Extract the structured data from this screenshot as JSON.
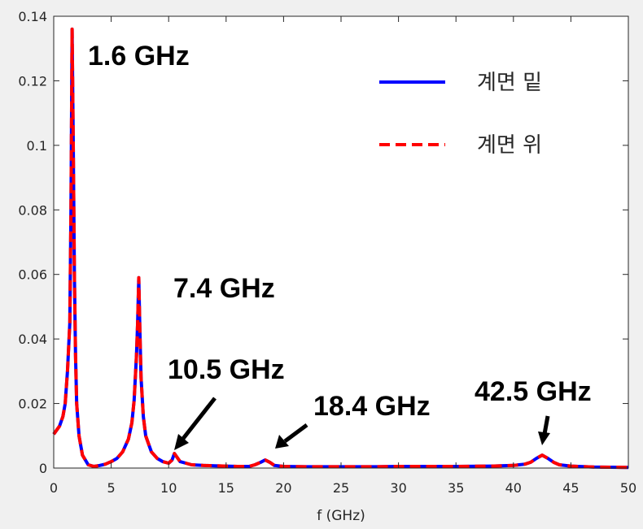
{
  "chart_data": {
    "type": "line",
    "title": "",
    "xlabel": "f (GHz)",
    "ylabel": "",
    "xlim": [
      0,
      50
    ],
    "ylim": [
      0,
      0.14
    ],
    "xticks": [
      "0",
      "5",
      "10",
      "15",
      "20",
      "25",
      "30",
      "35",
      "40",
      "45",
      "50"
    ],
    "yticks": [
      "0",
      "0.02",
      "0.04",
      "0.06",
      "0.08",
      "0.1",
      "0.12",
      "0.14"
    ],
    "grid": false,
    "legend_position": "top-right",
    "colors": {
      "blue": "#0000ff",
      "red": "#ff0000"
    },
    "series": [
      {
        "name": "계면 밑",
        "color": "#0000ff",
        "style": "solid",
        "x": [
          0,
          0.5,
          0.8,
          1.0,
          1.2,
          1.4,
          1.5,
          1.6,
          1.7,
          1.8,
          1.9,
          2.0,
          2.2,
          2.5,
          3.0,
          3.5,
          4.0,
          4.5,
          5.0,
          5.5,
          6.0,
          6.5,
          6.8,
          7.0,
          7.2,
          7.3,
          7.4,
          7.5,
          7.6,
          7.8,
          8.0,
          8.5,
          9.0,
          9.5,
          10.0,
          10.3,
          10.5,
          10.8,
          11.0,
          11.5,
          12.0,
          13.0,
          14.0,
          15.0,
          16.0,
          17.0,
          17.5,
          18.0,
          18.4,
          18.8,
          19.2,
          20.0,
          22.0,
          25.0,
          28.0,
          30.0,
          32.0,
          35.0,
          38.0,
          40.0,
          41.0,
          41.5,
          42.0,
          42.5,
          43.0,
          43.5,
          44.0,
          45.0,
          47.0,
          50.0
        ],
        "y": [
          0.0105,
          0.013,
          0.016,
          0.02,
          0.03,
          0.045,
          0.08,
          0.136,
          0.1,
          0.06,
          0.035,
          0.02,
          0.01,
          0.004,
          0.001,
          0.0005,
          0.0008,
          0.0012,
          0.002,
          0.003,
          0.005,
          0.009,
          0.014,
          0.021,
          0.035,
          0.045,
          0.059,
          0.042,
          0.028,
          0.016,
          0.01,
          0.005,
          0.003,
          0.002,
          0.0015,
          0.0025,
          0.0045,
          0.003,
          0.002,
          0.0015,
          0.001,
          0.0008,
          0.0007,
          0.0006,
          0.0005,
          0.0005,
          0.001,
          0.0018,
          0.0025,
          0.0018,
          0.0008,
          0.0005,
          0.0004,
          0.0004,
          0.0004,
          0.0005,
          0.0005,
          0.0005,
          0.0006,
          0.0008,
          0.0012,
          0.0018,
          0.003,
          0.004,
          0.003,
          0.0018,
          0.001,
          0.0006,
          0.0003,
          0.0002
        ]
      },
      {
        "name": "계면 위",
        "color": "#ff0000",
        "style": "dashed",
        "x": [
          0,
          0.5,
          0.8,
          1.0,
          1.2,
          1.4,
          1.5,
          1.6,
          1.7,
          1.8,
          1.9,
          2.0,
          2.2,
          2.5,
          3.0,
          3.5,
          4.0,
          4.5,
          5.0,
          5.5,
          6.0,
          6.5,
          6.8,
          7.0,
          7.2,
          7.3,
          7.4,
          7.5,
          7.6,
          7.8,
          8.0,
          8.5,
          9.0,
          9.5,
          10.0,
          10.3,
          10.5,
          10.8,
          11.0,
          11.5,
          12.0,
          13.0,
          14.0,
          15.0,
          16.0,
          17.0,
          17.5,
          18.0,
          18.4,
          18.8,
          19.2,
          20.0,
          22.0,
          25.0,
          28.0,
          30.0,
          32.0,
          35.0,
          38.0,
          40.0,
          41.0,
          41.5,
          42.0,
          42.5,
          43.0,
          43.5,
          44.0,
          45.0,
          47.0,
          50.0
        ],
        "y": [
          0.0105,
          0.013,
          0.016,
          0.02,
          0.03,
          0.045,
          0.08,
          0.136,
          0.1,
          0.06,
          0.035,
          0.02,
          0.01,
          0.004,
          0.001,
          0.0005,
          0.0008,
          0.0012,
          0.002,
          0.003,
          0.005,
          0.009,
          0.014,
          0.021,
          0.035,
          0.045,
          0.059,
          0.042,
          0.028,
          0.016,
          0.01,
          0.005,
          0.003,
          0.002,
          0.0015,
          0.0025,
          0.0045,
          0.003,
          0.002,
          0.0015,
          0.001,
          0.0008,
          0.0007,
          0.0006,
          0.0005,
          0.0005,
          0.001,
          0.0018,
          0.0025,
          0.0018,
          0.0008,
          0.0005,
          0.0004,
          0.0004,
          0.0004,
          0.0005,
          0.0005,
          0.0005,
          0.0006,
          0.0008,
          0.0012,
          0.0018,
          0.003,
          0.004,
          0.003,
          0.0018,
          0.001,
          0.0006,
          0.0003,
          0.0002
        ]
      }
    ],
    "annotations": [
      {
        "text": "1.6 GHz",
        "x": 1.6,
        "y": 0.136,
        "arrow": false
      },
      {
        "text": "7.4 GHz",
        "x": 7.4,
        "y": 0.059,
        "arrow": false
      },
      {
        "text": "10.5 GHz",
        "x": 10.5,
        "y": 0.0045,
        "arrow": true
      },
      {
        "text": "18.4 GHz",
        "x": 18.4,
        "y": 0.0025,
        "arrow": true
      },
      {
        "text": "42.5 GHz",
        "x": 42.5,
        "y": 0.004,
        "arrow": true
      }
    ]
  }
}
